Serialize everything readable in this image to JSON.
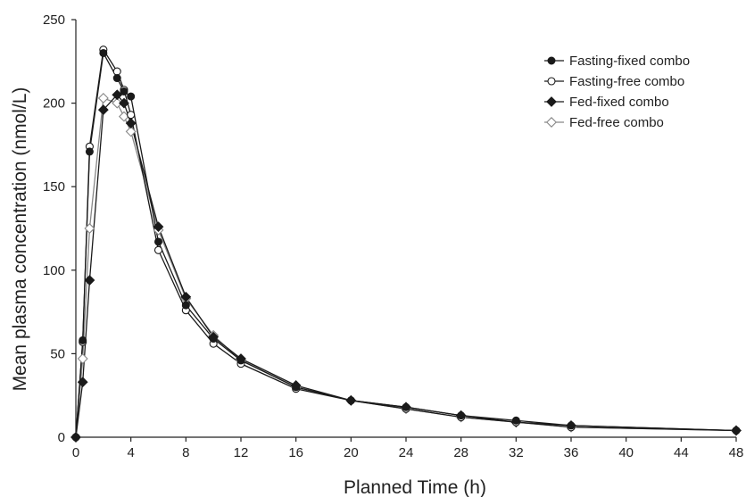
{
  "chart_data": {
    "type": "line",
    "xlabel": "Planned Time (h)",
    "ylabel": "Mean plasma concentration (nmol/L)",
    "xlim": [
      0,
      48
    ],
    "ylim": [
      0,
      250
    ],
    "xticks": [
      0,
      4,
      8,
      12,
      16,
      20,
      24,
      28,
      32,
      36,
      40,
      44,
      48
    ],
    "yticks": [
      0,
      50,
      100,
      150,
      200,
      250
    ],
    "xtick_labels": [
      "0",
      "4",
      "8",
      "12",
      "16",
      "20",
      "24",
      "28",
      "32",
      "36",
      "40",
      "44",
      "48"
    ],
    "ytick_labels": [
      "0",
      "50",
      "100",
      "150",
      "200",
      "250"
    ],
    "grid": false,
    "legend_position": "top-right",
    "series": [
      {
        "name": "Fasting-fixed combo",
        "marker": "filled-circle",
        "color": "#1a1a1a",
        "x": [
          0,
          0.5,
          1,
          2,
          3,
          3.5,
          4,
          6,
          8,
          10,
          12,
          16,
          20,
          24,
          28,
          32,
          36,
          48
        ],
        "y": [
          0,
          58,
          171,
          230,
          215,
          207,
          204,
          117,
          79,
          59,
          46,
          30,
          22,
          18,
          13,
          10,
          7,
          4
        ]
      },
      {
        "name": "Fasting-free combo",
        "marker": "open-circle",
        "color": "#1a1a1a",
        "x": [
          0,
          0.5,
          1,
          2,
          3,
          3.5,
          4,
          6,
          8,
          10,
          12,
          16,
          20,
          24,
          28,
          32,
          36,
          48
        ],
        "y": [
          0,
          57,
          174,
          232,
          219,
          208,
          193,
          112,
          76,
          56,
          44,
          29,
          22,
          17,
          12,
          9,
          6,
          4
        ]
      },
      {
        "name": "Fed-fixed combo",
        "marker": "filled-diamond",
        "color": "#1a1a1a",
        "x": [
          0,
          0.5,
          1,
          2,
          3,
          3.5,
          4,
          6,
          8,
          10,
          12,
          16,
          20,
          24,
          28,
          32,
          36,
          48
        ],
        "y": [
          0,
          33,
          94,
          196,
          205,
          200,
          188,
          126,
          84,
          60,
          47,
          31,
          22,
          18,
          13,
          9,
          7,
          4
        ]
      },
      {
        "name": "Fed-free combo",
        "marker": "open-diamond",
        "color": "#888888",
        "x": [
          0,
          0.5,
          1,
          2,
          3,
          3.5,
          4,
          6,
          8,
          10,
          12,
          16,
          20,
          24,
          28,
          32,
          36,
          48
        ],
        "y": [
          0,
          47,
          125,
          203,
          200,
          192,
          183,
          124,
          83,
          61,
          46,
          30,
          22,
          17,
          12,
          9,
          6,
          4
        ]
      }
    ]
  }
}
